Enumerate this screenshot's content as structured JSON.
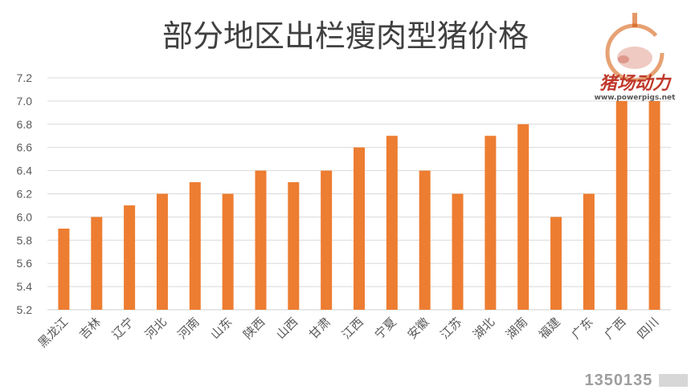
{
  "chart_data": {
    "type": "bar",
    "title": "部分地区出栏瘦肉型猪价格",
    "categories": [
      "黑龙江",
      "吉林",
      "辽宁",
      "河北",
      "河南",
      "山东",
      "陕西",
      "山西",
      "甘肃",
      "江西",
      "宁夏",
      "安徽",
      "江苏",
      "湖北",
      "湖南",
      "福建",
      "广东",
      "广西",
      "四川"
    ],
    "values": [
      5.9,
      6.0,
      6.1,
      6.2,
      6.3,
      6.2,
      6.4,
      6.3,
      6.4,
      6.6,
      6.7,
      6.4,
      6.2,
      6.7,
      6.8,
      6.0,
      6.2,
      7.0,
      7.0
    ],
    "ylim": [
      5.2,
      7.2
    ],
    "yticks": [
      "5.2",
      "5.4",
      "5.6",
      "5.8",
      "6.0",
      "6.2",
      "6.4",
      "6.6",
      "6.8",
      "7.0",
      "7.2"
    ],
    "grid": true,
    "bar_color": "#ED7D31",
    "grid_color": "#D9D9D9"
  },
  "watermark": {
    "brand": "猪场动力",
    "url": "www.powerpigs.net",
    "color": "#C0392B"
  },
  "footer_logo": {
    "text": "1350135"
  }
}
